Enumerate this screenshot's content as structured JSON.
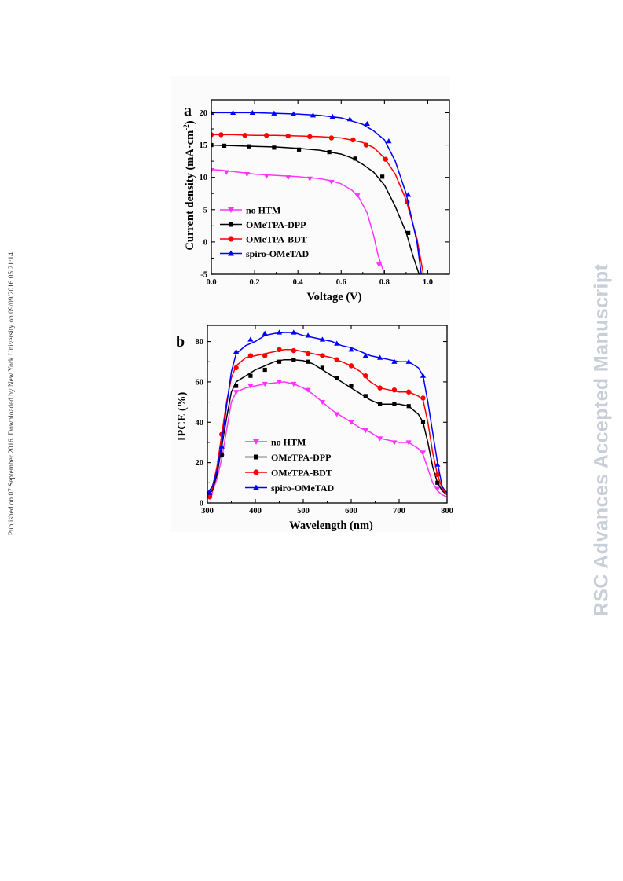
{
  "side_note": "Published on 07 September 2016. Downloaded by New York University on 09/09/2016 05:21:14.",
  "watermark": "RSC Advances Accepted Manuscript",
  "chart_data": [
    {
      "panel_label": "a",
      "type": "line",
      "xlabel": "Voltage (V)",
      "ylabel_main": "Current density (mA·cm",
      "ylabel_sup": "-2",
      "ylabel_end": ")",
      "xlim": [
        0.0,
        1.1
      ],
      "ylim": [
        -5,
        22
      ],
      "xticks": [
        0.0,
        0.2,
        0.4,
        0.6,
        0.8,
        1.0
      ],
      "xtick_labels": [
        "0.0",
        "0.2",
        "0.4",
        "0.6",
        "0.8",
        "1.0"
      ],
      "yticks": [
        -5,
        0,
        5,
        10,
        15,
        20
      ],
      "ytick_labels": [
        "-5",
        "0",
        "5",
        "10",
        "15",
        "20"
      ],
      "legend_position": "bottom-left",
      "series": [
        {
          "name": "no HTM",
          "color": "#ff33ff",
          "marker": "triangle-down",
          "x": [
            0.0,
            0.05,
            0.1,
            0.15,
            0.2,
            0.3,
            0.4,
            0.5,
            0.55,
            0.6,
            0.65,
            0.68,
            0.72,
            0.75,
            0.77,
            0.8
          ],
          "y": [
            11.2,
            11.1,
            10.9,
            10.7,
            10.5,
            10.3,
            10.1,
            9.8,
            9.5,
            9.0,
            8.0,
            7.0,
            4.5,
            1.0,
            -2.0,
            -5.0
          ],
          "marker_x": [
            0.0,
            0.07,
            0.165,
            0.255,
            0.355,
            0.455,
            0.555,
            0.675,
            0.775
          ],
          "marker_y": [
            11.1,
            10.8,
            10.5,
            10.2,
            10.0,
            9.8,
            9.3,
            7.2,
            -3.5
          ]
        },
        {
          "name": "OMeTPA-DPP",
          "color": "#000000",
          "marker": "square",
          "x": [
            0.0,
            0.1,
            0.2,
            0.3,
            0.4,
            0.5,
            0.6,
            0.65,
            0.7,
            0.75,
            0.8,
            0.85,
            0.9,
            0.93,
            0.96
          ],
          "y": [
            15.0,
            14.9,
            14.8,
            14.7,
            14.5,
            14.2,
            13.6,
            13.0,
            12.0,
            10.8,
            8.8,
            5.5,
            1.5,
            -2.0,
            -5.0
          ],
          "marker_x": [
            0.0,
            0.06,
            0.175,
            0.29,
            0.405,
            0.545,
            0.665,
            0.79,
            0.91
          ],
          "marker_y": [
            15.0,
            14.9,
            14.8,
            14.6,
            14.3,
            13.9,
            12.9,
            10.1,
            1.4
          ]
        },
        {
          "name": "OMeTPA-BDT",
          "color": "#ff0000",
          "marker": "circle",
          "x": [
            0.0,
            0.1,
            0.2,
            0.3,
            0.4,
            0.5,
            0.6,
            0.7,
            0.75,
            0.8,
            0.85,
            0.9,
            0.95,
            0.98
          ],
          "y": [
            16.6,
            16.6,
            16.5,
            16.5,
            16.4,
            16.3,
            16.1,
            15.4,
            14.6,
            13.0,
            10.5,
            6.5,
            0.5,
            -5.0
          ],
          "marker_x": [
            0.0,
            0.045,
            0.155,
            0.255,
            0.355,
            0.455,
            0.555,
            0.655,
            0.715,
            0.805,
            0.905
          ],
          "marker_y": [
            16.6,
            16.6,
            16.5,
            16.5,
            16.4,
            16.3,
            16.1,
            15.8,
            15.0,
            12.8,
            6.2
          ]
        },
        {
          "name": "spiro-OMeTAD",
          "color": "#0000ff",
          "marker": "triangle-up",
          "x": [
            0.0,
            0.1,
            0.2,
            0.3,
            0.4,
            0.5,
            0.6,
            0.7,
            0.75,
            0.8,
            0.85,
            0.9,
            0.95,
            0.97
          ],
          "y": [
            20.0,
            20.0,
            20.0,
            19.9,
            19.8,
            19.6,
            19.2,
            18.2,
            17.2,
            15.8,
            12.5,
            7.5,
            0.0,
            -5.0
          ],
          "marker_x": [
            0.0,
            0.1,
            0.19,
            0.29,
            0.38,
            0.47,
            0.56,
            0.64,
            0.72,
            0.82,
            0.91
          ],
          "marker_y": [
            20.0,
            20.0,
            20.0,
            19.9,
            19.8,
            19.6,
            19.4,
            19.0,
            18.3,
            15.6,
            7.3
          ]
        }
      ]
    },
    {
      "panel_label": "b",
      "type": "line",
      "xlabel": "Wavelength (nm)",
      "ylabel": "IPCE (%)",
      "xlim": [
        300,
        800
      ],
      "ylim": [
        0,
        88
      ],
      "xticks": [
        300,
        400,
        500,
        600,
        700,
        800
      ],
      "xtick_labels": [
        "300",
        "400",
        "500",
        "600",
        "700",
        "800"
      ],
      "yticks": [
        0,
        20,
        40,
        60,
        80
      ],
      "ytick_labels": [
        "0",
        "20",
        "40",
        "60",
        "80"
      ],
      "legend_position": "bottom-left",
      "series": [
        {
          "name": "no HTM",
          "color": "#ff33ff",
          "marker": "triangle-down",
          "x": [
            300,
            310,
            320,
            330,
            340,
            350,
            360,
            380,
            400,
            420,
            440,
            460,
            480,
            500,
            520,
            540,
            560,
            580,
            600,
            620,
            640,
            660,
            680,
            700,
            720,
            740,
            750,
            760,
            770,
            780,
            790,
            800
          ],
          "y": [
            3,
            5,
            12,
            22,
            36,
            50,
            55,
            57,
            58,
            59,
            59.5,
            60,
            59,
            57,
            54,
            50,
            46,
            43,
            40,
            37,
            35,
            32,
            31,
            30,
            30,
            27,
            24,
            17,
            10,
            6,
            4,
            3
          ],
          "marker_x": [
            305,
            330,
            360,
            390,
            420,
            450,
            480,
            510,
            540,
            570,
            600,
            630,
            660,
            690,
            720,
            750,
            780
          ],
          "marker_y": [
            3,
            23,
            55,
            58,
            59,
            60,
            59,
            56,
            50,
            44,
            40,
            36,
            32,
            30,
            30,
            25,
            7
          ]
        },
        {
          "name": "OMeTPA-DPP",
          "color": "#000000",
          "marker": "square",
          "x": [
            300,
            310,
            320,
            330,
            340,
            350,
            360,
            380,
            400,
            420,
            440,
            460,
            480,
            500,
            520,
            540,
            560,
            580,
            600,
            620,
            640,
            660,
            680,
            700,
            720,
            730,
            740,
            750,
            760,
            770,
            780,
            790,
            800
          ],
          "y": [
            4,
            6,
            14,
            28,
            42,
            55,
            60,
            63,
            66,
            68,
            70,
            71,
            71,
            70.5,
            69,
            66,
            63,
            60,
            57,
            54,
            51,
            49,
            49,
            49,
            48,
            46,
            44,
            40,
            30,
            18,
            10,
            6,
            4
          ],
          "marker_x": [
            305,
            330,
            360,
            390,
            420,
            450,
            480,
            510,
            540,
            570,
            600,
            630,
            660,
            690,
            720,
            750,
            780
          ],
          "marker_y": [
            4,
            24,
            58,
            63,
            66,
            70,
            71,
            70,
            67,
            62,
            58,
            53,
            49,
            49,
            48,
            40,
            10
          ]
        },
        {
          "name": "OMeTPA-BDT",
          "color": "#ff0000",
          "marker": "circle",
          "x": [
            300,
            310,
            320,
            330,
            340,
            350,
            360,
            380,
            400,
            420,
            440,
            460,
            480,
            500,
            520,
            540,
            560,
            580,
            600,
            620,
            640,
            660,
            680,
            700,
            720,
            740,
            750,
            760,
            770,
            780,
            790,
            800
          ],
          "y": [
            3,
            7,
            18,
            34,
            50,
            62,
            68,
            72,
            73,
            74,
            75,
            76,
            76,
            75,
            74,
            73,
            72,
            70,
            68,
            65,
            60,
            57,
            56,
            55,
            55,
            53,
            51,
            40,
            25,
            14,
            7,
            4
          ],
          "marker_x": [
            305,
            330,
            360,
            390,
            420,
            450,
            480,
            510,
            540,
            570,
            600,
            630,
            660,
            690,
            720,
            750,
            780
          ],
          "marker_y": [
            3,
            34,
            67,
            73,
            73,
            76,
            75.5,
            74,
            73,
            71,
            68,
            63,
            57,
            56,
            55,
            52,
            14
          ]
        },
        {
          "name": "spiro-OMeTAD",
          "color": "#0000ff",
          "marker": "triangle-up",
          "x": [
            300,
            310,
            320,
            330,
            340,
            350,
            360,
            380,
            400,
            420,
            440,
            460,
            480,
            500,
            520,
            540,
            560,
            580,
            600,
            620,
            640,
            660,
            680,
            700,
            720,
            740,
            750,
            760,
            770,
            780,
            790,
            800
          ],
          "y": [
            5,
            8,
            16,
            30,
            48,
            65,
            74,
            78,
            80,
            83,
            84,
            84.5,
            84.5,
            83,
            82,
            81,
            80,
            78,
            77,
            75,
            73,
            72,
            71,
            70,
            70,
            67,
            63,
            50,
            35,
            20,
            8,
            5
          ],
          "marker_x": [
            305,
            330,
            360,
            390,
            420,
            450,
            480,
            510,
            540,
            570,
            600,
            630,
            660,
            690,
            720,
            750,
            780
          ],
          "marker_y": [
            5,
            28,
            75,
            81,
            84,
            84.5,
            84.5,
            83,
            81,
            79,
            76,
            73,
            72,
            70,
            70,
            63,
            19
          ]
        }
      ]
    }
  ]
}
